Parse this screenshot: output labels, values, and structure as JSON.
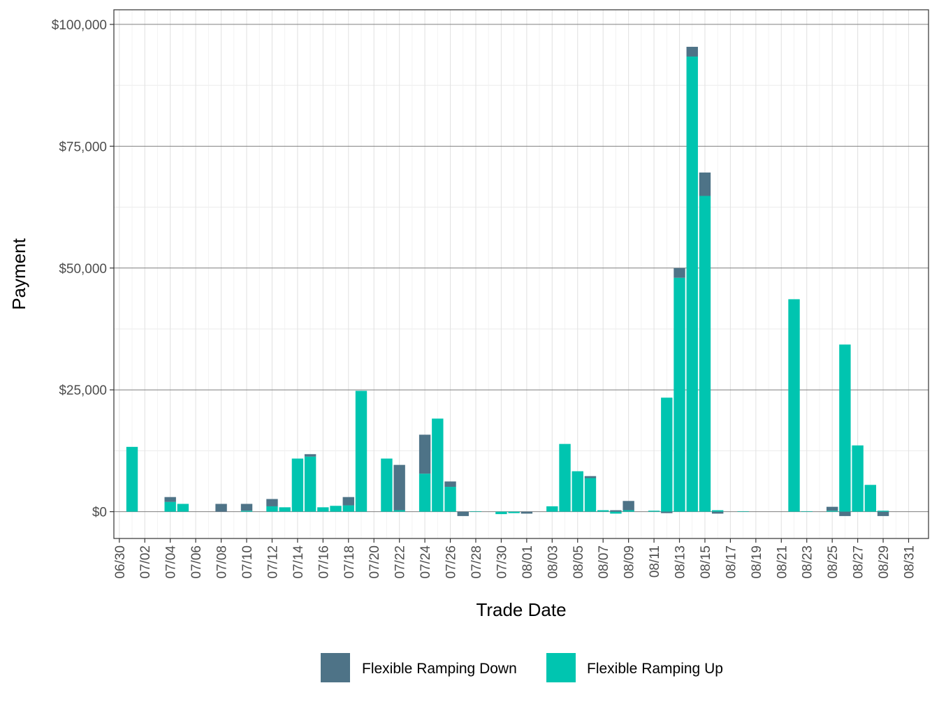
{
  "chart_data": {
    "type": "bar",
    "stacked": true,
    "xlabel": "Trade Date",
    "ylabel": "Payment",
    "ylim": [
      -5500,
      103000
    ],
    "yticks": [
      0,
      25000,
      50000,
      75000,
      100000
    ],
    "ytick_labels": [
      "$0",
      "$25,000",
      "$50,000",
      "$75,000",
      "$100,000"
    ],
    "x_tick_labels": [
      "06/30",
      "07/02",
      "07/04",
      "07/06",
      "07/08",
      "07/10",
      "07/12",
      "07/14",
      "07/16",
      "07/18",
      "07/20",
      "07/22",
      "07/24",
      "07/26",
      "07/28",
      "07/30",
      "08/01",
      "08/03",
      "08/05",
      "08/07",
      "08/09",
      "08/11",
      "08/13",
      "08/15",
      "08/17",
      "08/19",
      "08/21",
      "08/23",
      "08/25",
      "08/27",
      "08/29",
      "08/31"
    ],
    "grid": true,
    "legend_position": "bottom",
    "categories": [
      "07/01",
      "07/02",
      "07/03",
      "07/04",
      "07/05",
      "07/06",
      "07/07",
      "07/08",
      "07/09",
      "07/10",
      "07/11",
      "07/12",
      "07/13",
      "07/14",
      "07/15",
      "07/16",
      "07/17",
      "07/18",
      "07/19",
      "07/20",
      "07/21",
      "07/22",
      "07/23",
      "07/24",
      "07/25",
      "07/26",
      "07/27",
      "07/28",
      "07/29",
      "07/30",
      "07/31",
      "08/01",
      "08/02",
      "08/03",
      "08/04",
      "08/05",
      "08/06",
      "08/07",
      "08/08",
      "08/09",
      "08/10",
      "08/11",
      "08/12",
      "08/13",
      "08/14",
      "08/15",
      "08/16",
      "08/17",
      "08/18",
      "08/19",
      "08/20",
      "08/21",
      "08/22",
      "08/23",
      "08/24",
      "08/25",
      "08/26",
      "08/27",
      "08/28",
      "08/29",
      "08/30"
    ],
    "series": [
      {
        "name": "Flexible Ramping Down",
        "color": "#4e7387",
        "values": [
          0,
          0,
          0,
          1000,
          0,
          0,
          0,
          1600,
          0,
          1400,
          0,
          1500,
          0,
          0,
          500,
          0,
          0,
          1700,
          0,
          0,
          0,
          9300,
          0,
          8000,
          0,
          1100,
          -900,
          0,
          0,
          0,
          0,
          -400,
          0,
          0,
          0,
          0,
          400,
          0,
          300,
          1900,
          0,
          0,
          -300,
          2000,
          2000,
          4800,
          -400,
          0,
          0,
          0,
          0,
          0,
          0,
          0,
          0,
          800,
          -900,
          0,
          0,
          -900,
          0
        ]
      },
      {
        "name": "Flexible Ramping Up",
        "color": "#00c5b0",
        "values": [
          13300,
          0,
          0,
          2000,
          1600,
          0,
          0,
          0,
          0,
          200,
          0,
          1100,
          900,
          10900,
          11300,
          900,
          1200,
          1300,
          24800,
          0,
          10900,
          300,
          0,
          7800,
          19100,
          5100,
          0,
          100,
          0,
          -500,
          -300,
          0,
          0,
          1100,
          13900,
          8300,
          6900,
          300,
          -400,
          300,
          0,
          200,
          23400,
          48000,
          93400,
          64800,
          300,
          0,
          100,
          0,
          0,
          0,
          43600,
          100,
          0,
          200,
          34300,
          13600,
          5500,
          200,
          0
        ]
      }
    ]
  }
}
